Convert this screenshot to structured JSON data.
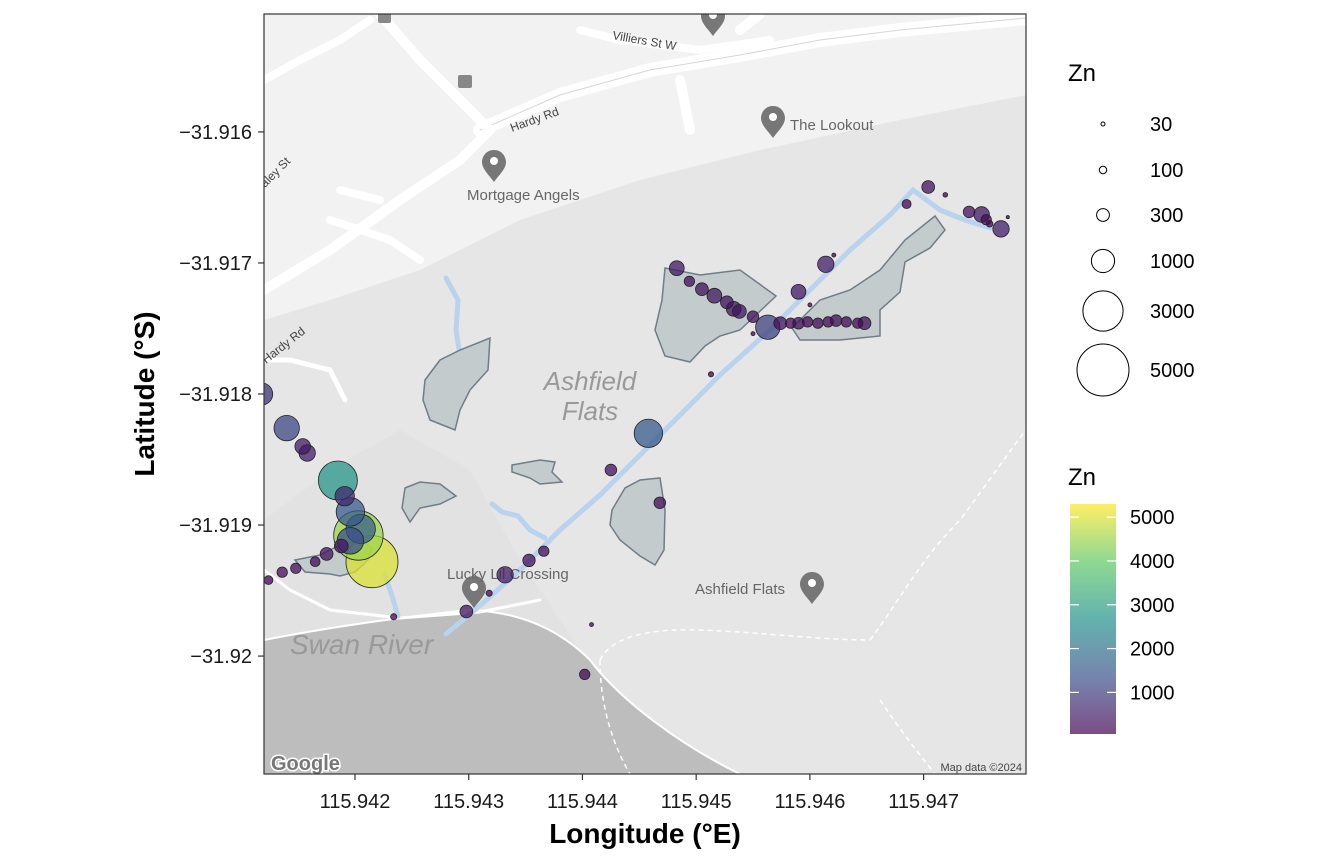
{
  "chart_data": {
    "type": "scatter",
    "xlabel": "Longitude (°E)",
    "ylabel": "Latitude (°S)",
    "xlim": [
      115.9412,
      115.9479
    ],
    "ylim": [
      -31.9209,
      -31.9151
    ],
    "x_ticks": [
      115.942,
      115.943,
      115.944,
      115.945,
      115.946,
      115.947
    ],
    "x_tick_labels": [
      "115.942",
      "115.943",
      "115.944",
      "115.945",
      "115.946",
      "115.947"
    ],
    "y_ticks": [
      -31.916,
      -31.917,
      -31.918,
      -31.919,
      -31.92
    ],
    "y_tick_labels": [
      "−31.916",
      "−31.917",
      "−31.918",
      "−31.919",
      "−31.92"
    ],
    "grid": false,
    "basemap": "greyscale road map",
    "legends": {
      "size": {
        "title": "Zn",
        "breaks": [
          30,
          100,
          300,
          1000,
          3000,
          5000
        ],
        "labels": [
          "30",
          "100",
          "300",
          "1000",
          "3000",
          "5000"
        ]
      },
      "color": {
        "title": "Zn",
        "palette": "viridis",
        "colors": [
          "#440154",
          "#3b528b",
          "#21918c",
          "#5ec962",
          "#fde725"
        ],
        "range": [
          50,
          5300
        ],
        "breaks": [
          1000,
          2000,
          3000,
          4000,
          5000
        ],
        "labels": [
          "1000",
          "2000",
          "3000",
          "4000",
          "5000"
        ],
        "placement": "right"
      }
    },
    "points": [
      {
        "x": 115.94124,
        "y": -31.91942,
        "z": 140
      },
      {
        "x": 115.94136,
        "y": -31.91936,
        "z": 200
      },
      {
        "x": 115.94148,
        "y": -31.91933,
        "z": 200
      },
      {
        "x": 115.94165,
        "y": -31.91928,
        "z": 180
      },
      {
        "x": 115.94175,
        "y": -31.91922,
        "z": 300
      },
      {
        "x": 115.94188,
        "y": -31.91916,
        "z": 350
      },
      {
        "x": 115.94203,
        "y": -31.91908,
        "z": 4500
      },
      {
        "x": 115.94215,
        "y": -31.91928,
        "z": 5000
      },
      {
        "x": 115.94196,
        "y": -31.91912,
        "z": 1300
      },
      {
        "x": 115.94205,
        "y": -31.91903,
        "z": 1600
      },
      {
        "x": 115.94196,
        "y": -31.9189,
        "z": 1500
      },
      {
        "x": 115.94191,
        "y": -31.91878,
        "z": 700
      },
      {
        "x": 115.94185,
        "y": -31.91866,
        "z": 2800
      },
      {
        "x": 115.94158,
        "y": -31.91845,
        "z": 500
      },
      {
        "x": 115.94154,
        "y": -31.9184,
        "z": 450
      },
      {
        "x": 115.9414,
        "y": -31.91826,
        "z": 1200
      },
      {
        "x": 115.94118,
        "y": -31.918,
        "z": 900
      },
      {
        "x": 115.94234,
        "y": -31.9197,
        "z": 70
      },
      {
        "x": 115.94298,
        "y": -31.91966,
        "z": 300
      },
      {
        "x": 115.94318,
        "y": -31.91952,
        "z": 70
      },
      {
        "x": 115.94332,
        "y": -31.91938,
        "z": 500
      },
      {
        "x": 115.94353,
        "y": -31.91927,
        "z": 280
      },
      {
        "x": 115.94366,
        "y": -31.9192,
        "z": 200
      },
      {
        "x": 115.94408,
        "y": -31.91976,
        "z": 30
      },
      {
        "x": 115.94402,
        "y": -31.92014,
        "z": 200
      },
      {
        "x": 115.94425,
        "y": -31.91858,
        "z": 250
      },
      {
        "x": 115.94458,
        "y": -31.9183,
        "z": 1500
      },
      {
        "x": 115.94468,
        "y": -31.91883,
        "z": 250
      },
      {
        "x": 115.94513,
        "y": -31.91785,
        "z": 50
      },
      {
        "x": 115.94483,
        "y": -31.91704,
        "z": 400
      },
      {
        "x": 115.94494,
        "y": -31.91714,
        "z": 200
      },
      {
        "x": 115.94505,
        "y": -31.9172,
        "z": 300
      },
      {
        "x": 115.94516,
        "y": -31.91725,
        "z": 400
      },
      {
        "x": 115.94527,
        "y": -31.9173,
        "z": 300
      },
      {
        "x": 115.94533,
        "y": -31.91735,
        "z": 400
      },
      {
        "x": 115.94538,
        "y": -31.91737,
        "z": 350
      },
      {
        "x": 115.9455,
        "y": -31.91741,
        "z": 250
      },
      {
        "x": 115.9455,
        "y": -31.91754,
        "z": 30
      },
      {
        "x": 115.94563,
        "y": -31.91749,
        "z": 1100
      },
      {
        "x": 115.94574,
        "y": -31.91746,
        "z": 300
      },
      {
        "x": 115.94583,
        "y": -31.91746,
        "z": 200
      },
      {
        "x": 115.9459,
        "y": -31.91746,
        "z": 250
      },
      {
        "x": 115.94598,
        "y": -31.91745,
        "z": 200
      },
      {
        "x": 115.94607,
        "y": -31.91746,
        "z": 200
      },
      {
        "x": 115.94616,
        "y": -31.91745,
        "z": 200
      },
      {
        "x": 115.94623,
        "y": -31.91744,
        "z": 250
      },
      {
        "x": 115.94632,
        "y": -31.91745,
        "z": 200
      },
      {
        "x": 115.94642,
        "y": -31.91746,
        "z": 200
      },
      {
        "x": 115.94648,
        "y": -31.91746,
        "z": 300
      },
      {
        "x": 115.946,
        "y": -31.91732,
        "z": 30
      },
      {
        "x": 115.9459,
        "y": -31.91722,
        "z": 400
      },
      {
        "x": 115.94614,
        "y": -31.91701,
        "z": 500
      },
      {
        "x": 115.94621,
        "y": -31.91694,
        "z": 30
      },
      {
        "x": 115.94685,
        "y": -31.91655,
        "z": 150
      },
      {
        "x": 115.94704,
        "y": -31.91642,
        "z": 300
      },
      {
        "x": 115.94719,
        "y": -31.91648,
        "z": 40
      },
      {
        "x": 115.9474,
        "y": -31.91661,
        "z": 250
      },
      {
        "x": 115.94751,
        "y": -31.91663,
        "z": 450
      },
      {
        "x": 115.94755,
        "y": -31.91667,
        "z": 200
      },
      {
        "x": 115.94758,
        "y": -31.9167,
        "z": 80
      },
      {
        "x": 115.94768,
        "y": -31.91674,
        "z": 500
      },
      {
        "x": 115.94774,
        "y": -31.91665,
        "z": 20
      }
    ]
  },
  "map": {
    "area_label_line1": "Ashfield",
    "area_label_line2": "Flats",
    "river_label": "Swan River",
    "place_lookout": "The Lookout",
    "place_mortgage": "Mortgage Angels",
    "place_crossing": "Lucky Lil Crossing",
    "place_flats": "Ashfield Flats",
    "road_villiers": "Villiers St W",
    "road_hardy_top": "Hardy Rd",
    "road_hardy_left": "Hardy Rd",
    "road_st": "aley St",
    "attribution": "Map data ©2024",
    "logo": "Google"
  }
}
